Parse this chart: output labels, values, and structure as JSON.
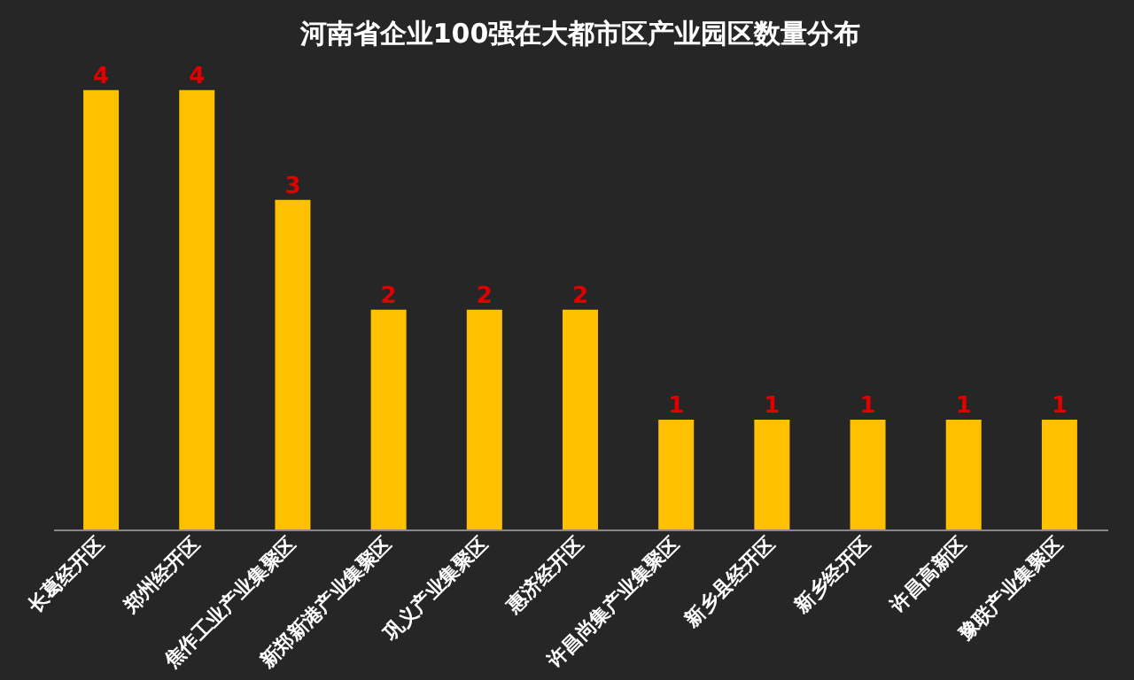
{
  "chart_data": {
    "type": "bar",
    "title": "河南省企业100强在大都市区产业园区数量分布",
    "categories": [
      "长葛经开区",
      "郑州经开区",
      "焦作工业产业集聚区",
      "新郑新港产业集聚区",
      "巩义产业集聚区",
      "惠济经开区",
      "许昌尚集产业集聚区",
      "新乡县经开区",
      "新乡经开区",
      "许昌高新区",
      "豫联产业集聚区"
    ],
    "values": [
      4,
      4,
      3,
      2,
      2,
      2,
      1,
      1,
      1,
      1,
      1
    ],
    "color": "#ffc000",
    "data_labels": true
  }
}
